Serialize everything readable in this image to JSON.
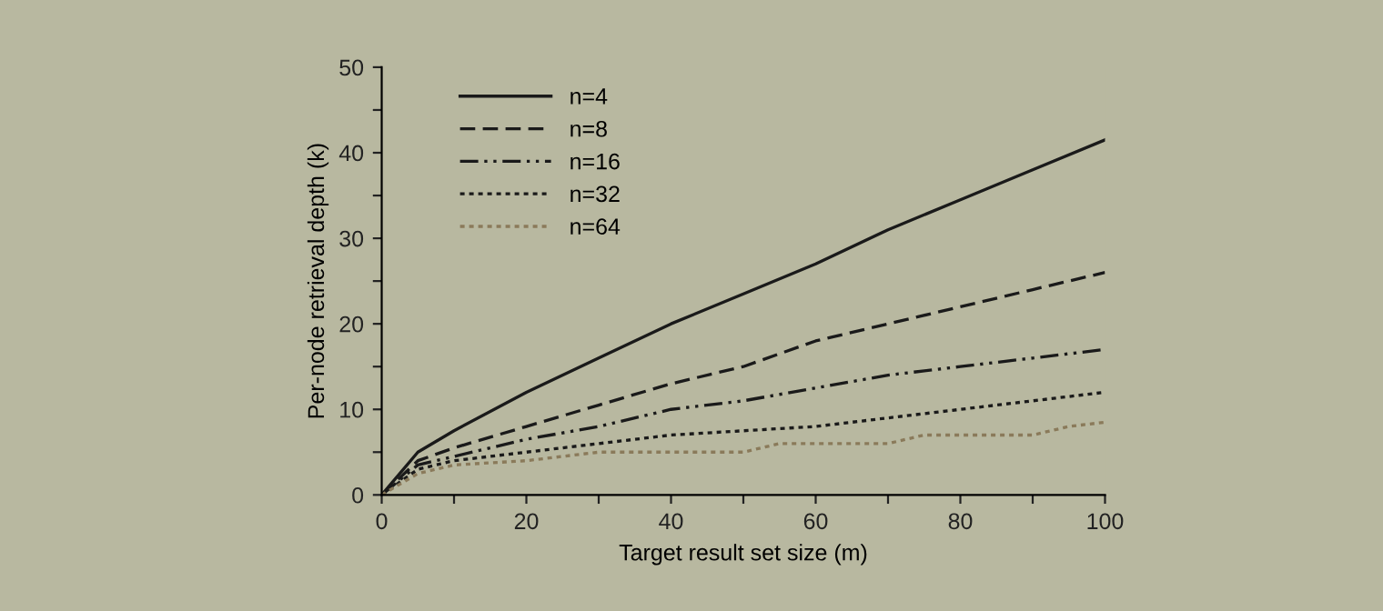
{
  "chart_data": {
    "type": "line",
    "xlabel": "Target result set size (m)",
    "ylabel": "Per-node retrieval depth (k)",
    "xlim": [
      0,
      100
    ],
    "ylim": [
      0,
      50
    ],
    "xticks": [
      0,
      {
        "value": 10,
        "label": null
      },
      20,
      {
        "value": 30,
        "label": null
      },
      40,
      {
        "value": 50,
        "label": null
      },
      60,
      {
        "value": 70,
        "label": null
      },
      80,
      {
        "value": 90,
        "label": null
      },
      100
    ],
    "yticks": [
      0,
      {
        "value": 5,
        "label": null
      },
      10,
      {
        "value": 15,
        "label": null
      },
      20,
      {
        "value": 25,
        "label": null
      },
      30,
      {
        "value": 35,
        "label": null
      },
      40,
      {
        "value": 45,
        "label": null
      },
      50
    ],
    "grid": false,
    "legend": "top left",
    "marker": "none",
    "series": [
      {
        "name": "n=4",
        "color": "#1a1a1a",
        "line_style": "solid",
        "x": [
          0,
          5,
          10,
          20,
          30,
          40,
          50,
          60,
          70,
          80,
          90,
          100
        ],
        "values": [
          0,
          5,
          7.5,
          12,
          16,
          20,
          23.5,
          27,
          31,
          34.5,
          38,
          41.5
        ]
      },
      {
        "name": "n=8",
        "color": "#1a1a1a",
        "line_style": "dashed",
        "x": [
          0,
          5,
          10,
          20,
          30,
          40,
          50,
          60,
          70,
          80,
          90,
          100
        ],
        "values": [
          0,
          4,
          5.5,
          8,
          10.5,
          13,
          15,
          18,
          20,
          22,
          24,
          26
        ]
      },
      {
        "name": "n=16",
        "color": "#1a1a1a",
        "line_style": "dashdot",
        "x": [
          0,
          5,
          10,
          20,
          30,
          40,
          50,
          60,
          70,
          80,
          90,
          100
        ],
        "values": [
          0,
          3.5,
          4.5,
          6.5,
          8,
          10,
          11,
          12.5,
          14,
          15,
          16,
          17
        ]
      },
      {
        "name": "n=32",
        "color": "#1a1a1a",
        "line_style": "dotted",
        "x": [
          0,
          5,
          10,
          20,
          30,
          40,
          60,
          70,
          80,
          90,
          100
        ],
        "values": [
          0,
          3,
          4,
          5,
          6,
          7,
          8,
          9,
          10,
          11,
          12
        ]
      },
      {
        "name": "n=64",
        "color": "#8a7a5a",
        "line_style": "dotted",
        "x": [
          0,
          5,
          10,
          20,
          30,
          50,
          55,
          70,
          75,
          90,
          95,
          100
        ],
        "values": [
          0,
          2.5,
          3.5,
          4,
          5,
          5,
          6,
          6,
          7,
          7,
          8,
          8.5
        ]
      }
    ]
  }
}
